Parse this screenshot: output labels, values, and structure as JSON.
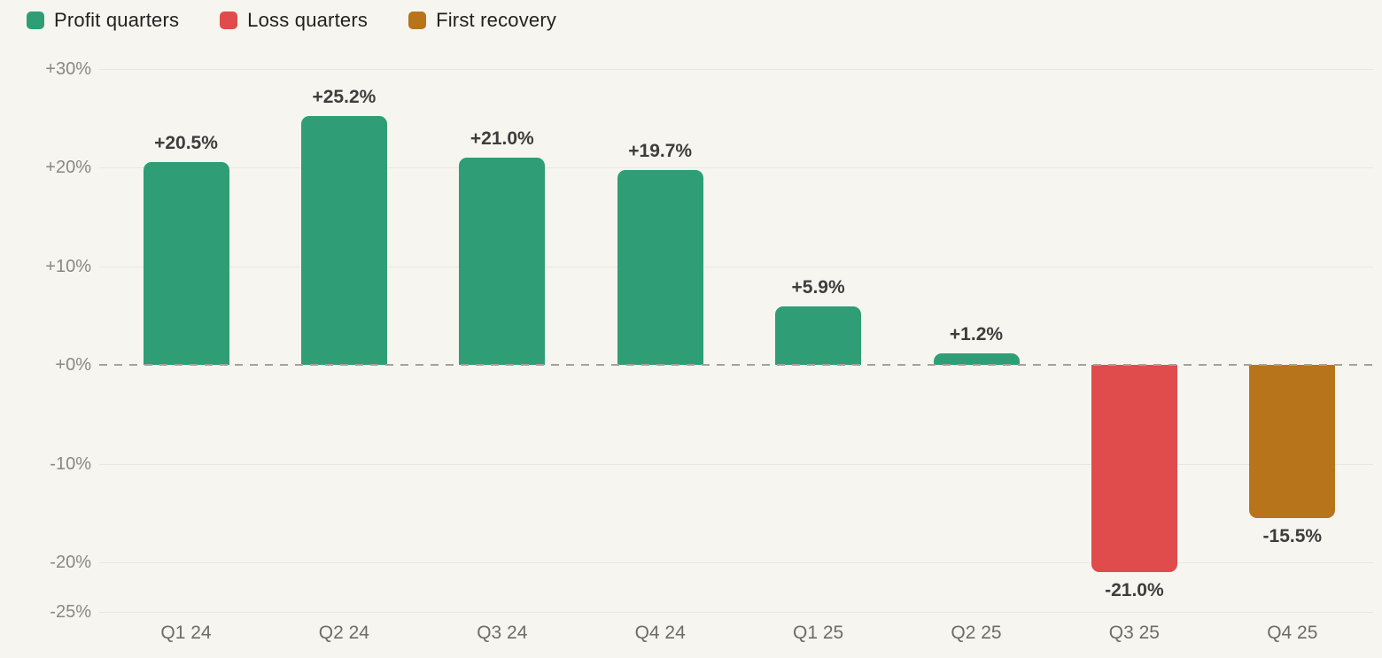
{
  "legend": {
    "items": [
      {
        "label": "Profit quarters",
        "color_key": "profit"
      },
      {
        "label": "Loss quarters",
        "color_key": "loss"
      },
      {
        "label": "First recovery",
        "color_key": "recovery"
      }
    ]
  },
  "colors": {
    "background": "#f7f5f0",
    "profit": "#2f9e76",
    "loss": "#e04b4b",
    "recovery": "#b8741a",
    "gridline": "#eae7e0",
    "zero_line": "#a5a29c",
    "ytick_label": "#8b8880",
    "xtick_label": "#6f6c66",
    "value_label": "#3d3d3d",
    "legend_text": "#222222"
  },
  "chart_data": {
    "type": "bar",
    "title": "",
    "xlabel": "",
    "ylabel": "",
    "categories": [
      "Q1 24",
      "Q2 24",
      "Q3 24",
      "Q4 24",
      "Q1 25",
      "Q2 25",
      "Q3 25",
      "Q4 25"
    ],
    "values": [
      20.5,
      25.2,
      21.0,
      19.7,
      5.9,
      1.2,
      -21.0,
      -15.5
    ],
    "bar_labels": [
      "+20.5%",
      "+25.2%",
      "+21.0%",
      "+19.7%",
      "+5.9%",
      "+1.2%",
      "-21.0%",
      "-15.5%"
    ],
    "bar_color_keys": [
      "profit",
      "profit",
      "profit",
      "profit",
      "profit",
      "profit",
      "loss",
      "recovery"
    ],
    "yticks": [
      {
        "value": 30,
        "label": "+30%"
      },
      {
        "value": 20,
        "label": "+20%"
      },
      {
        "value": 10,
        "label": "+10%"
      },
      {
        "value": 0,
        "label": "+0%"
      },
      {
        "value": -10,
        "label": "-10%"
      },
      {
        "value": -20,
        "label": "-20%"
      },
      {
        "value": -25,
        "label": "-25%"
      }
    ],
    "ylim": [
      -29.7,
      32.2
    ],
    "grid": true,
    "zero_line_style": "dashed",
    "legend_position": "top-left"
  }
}
